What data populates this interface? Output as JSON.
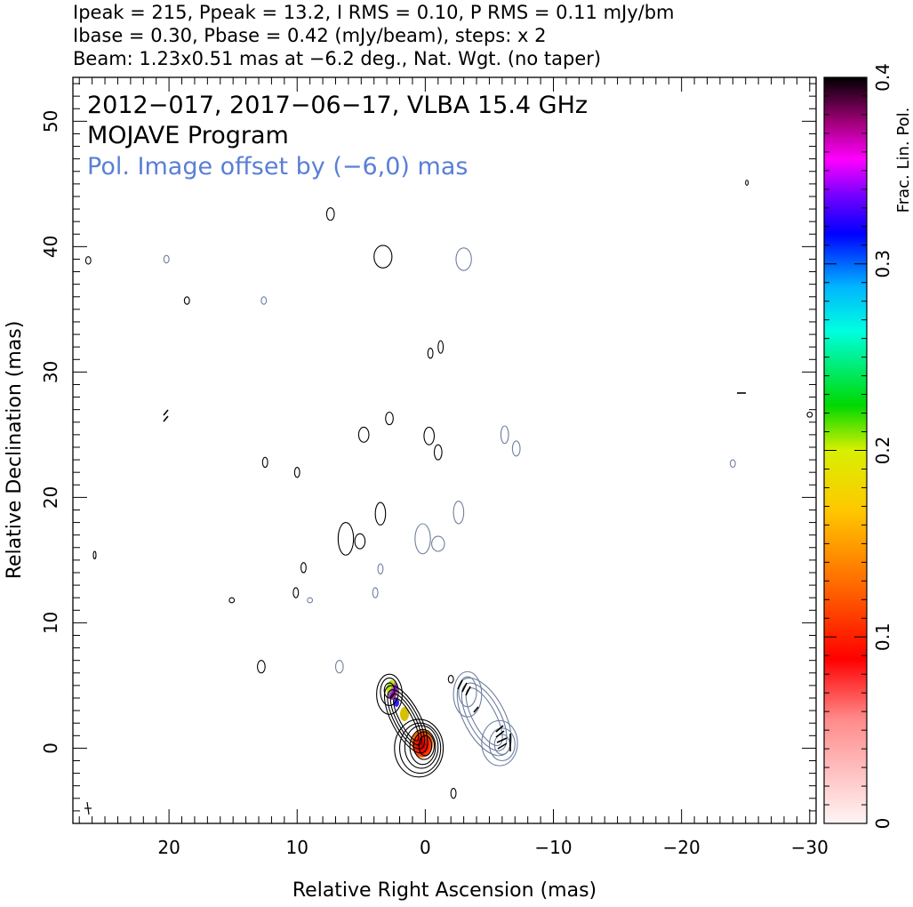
{
  "header": {
    "line1": "Ipeak = 215, Ppeak = 13.2, I RMS = 0.10, P RMS = 0.11 mJy/bm",
    "line2": "Ibase = 0.30, Pbase = 0.42 (mJy/beam), steps: x 2",
    "line3": "Beam: 1.23x0.51 mas at −6.2 deg., Nat. Wgt. (no taper)"
  },
  "colors": {
    "black": "#000000",
    "pol_contour": "#6f7f9f",
    "blue_accent": "#3a66d8",
    "annotation_blue": "#5a7fd6"
  },
  "chart_data": {
    "type": "contour",
    "annotations": {
      "source_line": "2012−017, 2017−06−17, VLBA 15.4 GHz",
      "program": "MOJAVE Program",
      "pol_offset": "Pol. Image offset by (−6,0) mas"
    },
    "xlabel": "Relative Right Ascension (mas)",
    "ylabel": "Relative Declination (mas)",
    "xlim": [
      27.5,
      -30.5
    ],
    "ylim": [
      -6,
      53.5
    ],
    "x_ticks": [
      20,
      10,
      0,
      -10,
      -20,
      -30
    ],
    "x_tick_labels": [
      "20",
      "10",
      "0",
      "−10",
      "−20",
      "−30"
    ],
    "y_ticks": [
      0,
      10,
      20,
      30,
      40,
      50
    ],
    "y_tick_labels": [
      "0",
      "10",
      "20",
      "30",
      "40",
      "50"
    ],
    "colorbar": {
      "label": "Frac. Lin. Pol.",
      "range": [
        0,
        0.4
      ],
      "ticks": [
        0,
        0.1,
        0.2,
        0.3,
        0.4
      ],
      "tick_labels": [
        "0",
        "0.1",
        "0.2",
        "0.3",
        "0.4"
      ]
    },
    "core_contours": [
      {
        "x": 0.0,
        "y": 0.2,
        "rx": 0.5,
        "ry": 0.8
      },
      {
        "x": 0.1,
        "y": 0.2,
        "rx": 0.8,
        "ry": 1.1
      },
      {
        "x": 0.2,
        "y": 0.1,
        "rx": 1.0,
        "ry": 1.4
      },
      {
        "x": 0.3,
        "y": 0.1,
        "rx": 1.3,
        "ry": 1.7
      },
      {
        "x": 0.4,
        "y": 0.0,
        "rx": 1.6,
        "ry": 2.0
      },
      {
        "x": 0.5,
        "y": 0.0,
        "rx": 1.9,
        "ry": 2.3
      },
      {
        "x": 2.8,
        "y": 4.6,
        "rx": 0.4,
        "ry": 0.6
      },
      {
        "x": 2.8,
        "y": 4.5,
        "rx": 0.7,
        "ry": 1.1
      },
      {
        "x": 2.8,
        "y": 4.3,
        "rx": 1.0,
        "ry": 1.6
      }
    ],
    "pol_contours": [
      {
        "x": -6.0,
        "y": 0.3,
        "rx": 0.6,
        "ry": 0.8
      },
      {
        "x": -6.0,
        "y": 0.3,
        "rx": 1.0,
        "ry": 1.3
      },
      {
        "x": -5.8,
        "y": 0.4,
        "rx": 1.4,
        "ry": 1.8
      },
      {
        "x": -3.3,
        "y": 4.5,
        "rx": 0.7,
        "ry": 1.2
      },
      {
        "x": -3.3,
        "y": 4.3,
        "rx": 1.1,
        "ry": 1.8
      }
    ],
    "noise_islands_black": [
      {
        "x": 3.3,
        "y": 39.2,
        "rx": 0.7,
        "ry": 0.9
      },
      {
        "x": 7.4,
        "y": 42.6,
        "rx": 0.3,
        "ry": 0.5
      },
      {
        "x": 26.3,
        "y": 38.9,
        "rx": 0.2,
        "ry": 0.3
      },
      {
        "x": 18.6,
        "y": 35.7,
        "rx": 0.2,
        "ry": 0.3
      },
      {
        "x": -0.3,
        "y": 24.9,
        "rx": 0.4,
        "ry": 0.7
      },
      {
        "x": -1.0,
        "y": 23.6,
        "rx": 0.3,
        "ry": 0.6
      },
      {
        "x": 2.8,
        "y": 26.3,
        "rx": 0.3,
        "ry": 0.5
      },
      {
        "x": 4.8,
        "y": 25.0,
        "rx": 0.4,
        "ry": 0.6
      },
      {
        "x": 12.5,
        "y": 22.8,
        "rx": 0.2,
        "ry": 0.4
      },
      {
        "x": 10.0,
        "y": 22.0,
        "rx": 0.2,
        "ry": 0.4
      },
      {
        "x": 6.2,
        "y": 16.7,
        "rx": 0.6,
        "ry": 1.3
      },
      {
        "x": 5.1,
        "y": 16.5,
        "rx": 0.4,
        "ry": 0.6
      },
      {
        "x": 3.5,
        "y": 18.7,
        "rx": 0.4,
        "ry": 0.9
      },
      {
        "x": 9.5,
        "y": 14.4,
        "rx": 0.2,
        "ry": 0.4
      },
      {
        "x": 10.1,
        "y": 12.4,
        "rx": 0.2,
        "ry": 0.4
      },
      {
        "x": 15.1,
        "y": 11.8,
        "rx": 0.2,
        "ry": 0.2
      },
      {
        "x": 12.8,
        "y": 6.5,
        "rx": 0.3,
        "ry": 0.5
      },
      {
        "x": 25.8,
        "y": 15.4,
        "rx": 0.1,
        "ry": 0.3
      },
      {
        "x": -2.0,
        "y": 5.5,
        "rx": 0.2,
        "ry": 0.3
      },
      {
        "x": -2.2,
        "y": -3.6,
        "rx": 0.2,
        "ry": 0.4
      },
      {
        "x": -25.1,
        "y": 45.1,
        "rx": 0.1,
        "ry": 0.2
      },
      {
        "x": -30.0,
        "y": 26.6,
        "rx": 0.2,
        "ry": 0.2
      },
      {
        "x": -0.4,
        "y": 31.5,
        "rx": 0.2,
        "ry": 0.4
      },
      {
        "x": -1.2,
        "y": 32.0,
        "rx": 0.2,
        "ry": 0.5
      }
    ],
    "noise_islands_pol": [
      {
        "x": -3.0,
        "y": 39.0,
        "rx": 0.6,
        "ry": 0.9
      },
      {
        "x": 20.2,
        "y": 39.0,
        "rx": 0.2,
        "ry": 0.3
      },
      {
        "x": 12.6,
        "y": 35.7,
        "rx": 0.2,
        "ry": 0.3
      },
      {
        "x": -6.2,
        "y": 25.0,
        "rx": 0.3,
        "ry": 0.7
      },
      {
        "x": -7.1,
        "y": 23.9,
        "rx": 0.3,
        "ry": 0.6
      },
      {
        "x": 0.2,
        "y": 16.7,
        "rx": 0.6,
        "ry": 1.2
      },
      {
        "x": -1.0,
        "y": 16.3,
        "rx": 0.5,
        "ry": 0.6
      },
      {
        "x": -2.6,
        "y": 18.8,
        "rx": 0.4,
        "ry": 0.9
      },
      {
        "x": 3.5,
        "y": 14.3,
        "rx": 0.2,
        "ry": 0.4
      },
      {
        "x": 3.9,
        "y": 12.4,
        "rx": 0.2,
        "ry": 0.4
      },
      {
        "x": 9.0,
        "y": 11.8,
        "rx": 0.2,
        "ry": 0.2
      },
      {
        "x": 6.7,
        "y": 6.5,
        "rx": 0.3,
        "ry": 0.5
      },
      {
        "x": -24.0,
        "y": 22.7,
        "rx": 0.2,
        "ry": 0.3
      }
    ]
  }
}
